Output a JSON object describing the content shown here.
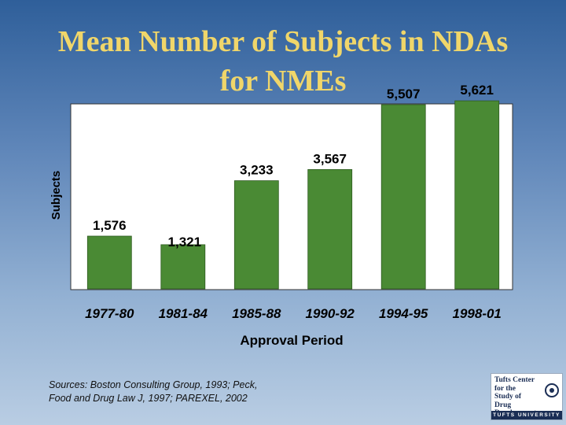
{
  "slide": {
    "title_line1": "Mean Number of Subjects in NDAs",
    "title_line2": "for NMEs",
    "sources_line1": "Sources: Boston Consulting Group, 1993; Peck,",
    "sources_line2": "Food and Drug Law J, 1997; PAREXEL, 2002"
  },
  "logo": {
    "text": "Tufts Center\nfor the\nStudy of\nDrug Development",
    "bar_text": "TUFTS UNIVERSITY",
    "icon": "seal-icon"
  },
  "colors": {
    "title": "#f0d66a",
    "bar": "#4a8a34",
    "plot_background": "#ffffff"
  },
  "chart_data": {
    "type": "bar",
    "title": "",
    "xlabel": "Approval Period",
    "ylabel": "Subjects",
    "categories": [
      "1977-80",
      "1981-84",
      "1985-88",
      "1990-92",
      "1994-95",
      "1998-01"
    ],
    "values": [
      1576,
      1321,
      3233,
      3567,
      5507,
      5621
    ],
    "value_labels": [
      "1,576",
      "1,321",
      "3,233",
      "3,567",
      "5,507",
      "5,621"
    ],
    "ylim": [
      0,
      6000
    ],
    "grid": false,
    "legend": "none"
  }
}
